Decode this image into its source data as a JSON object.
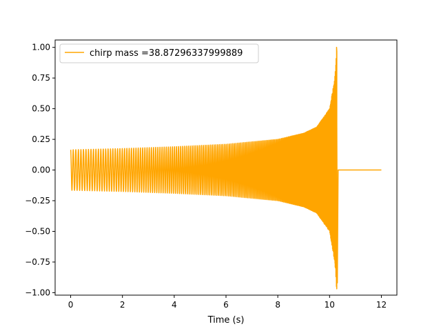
{
  "chart_data": {
    "type": "line",
    "title": "",
    "xlabel": "Time (s)",
    "ylabel": "",
    "xlim": [
      -0.6,
      12.6
    ],
    "ylim": [
      -1.02,
      1.06
    ],
    "xticks": [
      0,
      2,
      4,
      6,
      8,
      10,
      12
    ],
    "xtick_labels": [
      "0",
      "2",
      "4",
      "6",
      "8",
      "10",
      "12"
    ],
    "yticks": [
      -1.0,
      -0.75,
      -0.5,
      -0.25,
      0.0,
      0.25,
      0.5,
      0.75,
      1.0
    ],
    "ytick_labels": [
      "−1.00",
      "−0.75",
      "−0.50",
      "−0.25",
      "0.00",
      "0.25",
      "0.50",
      "0.75",
      "1.00"
    ],
    "grid": false,
    "legend_position": "top-left",
    "series": [
      {
        "name": "chirp mass =38.87296337999889",
        "color": "#FFA500",
        "signal": {
          "x_start": 0.0,
          "merger_time": 10.28,
          "x_end": 12.0,
          "peak_max": 1.0,
          "peak_min": -0.92,
          "envelope": [
            [
              0.0,
              0.165
            ],
            [
              2.0,
              0.175
            ],
            [
              4.0,
              0.19
            ],
            [
              6.0,
              0.21
            ],
            [
              8.0,
              0.25
            ],
            [
              9.0,
              0.3
            ],
            [
              9.5,
              0.35
            ],
            [
              10.0,
              0.5
            ],
            [
              10.2,
              0.75
            ],
            [
              10.28,
              1.0
            ]
          ]
        }
      }
    ]
  }
}
